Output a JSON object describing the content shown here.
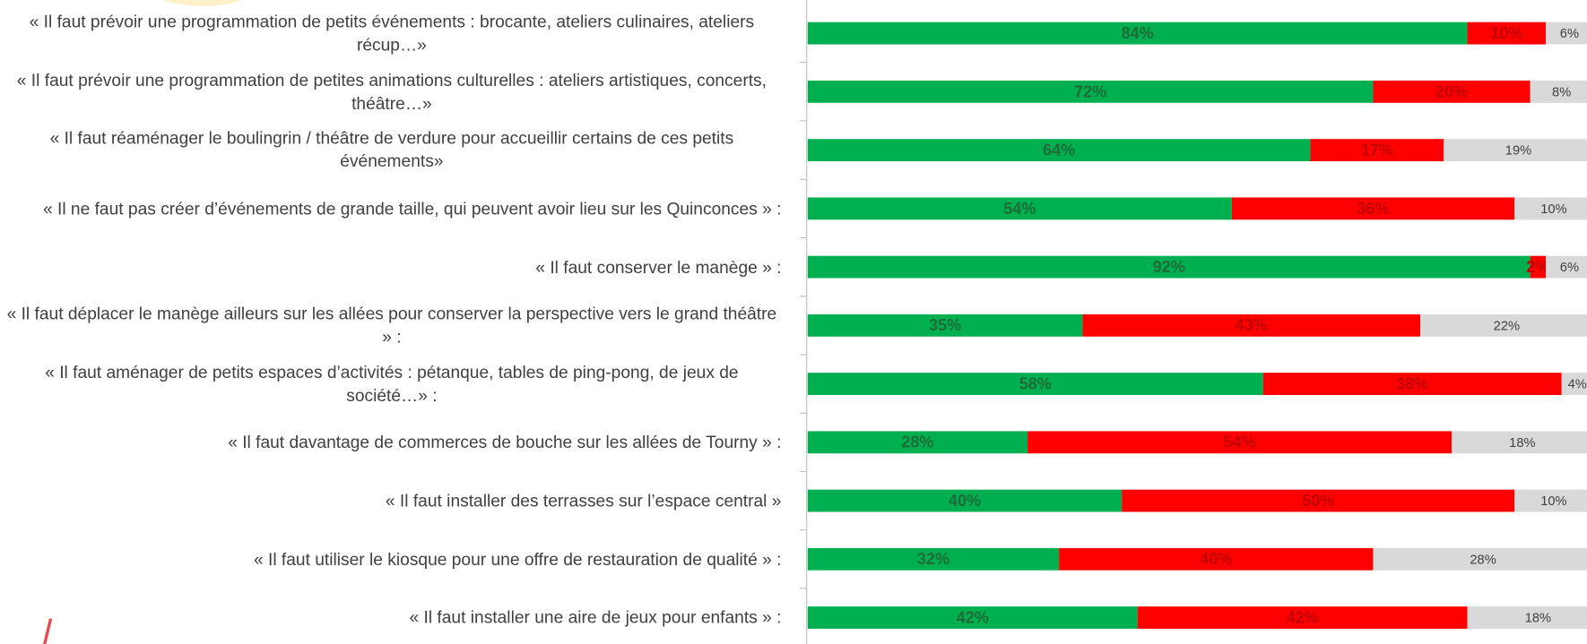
{
  "chart_data": {
    "type": "stacked_bar_horizontal",
    "categories": [
      "« Il faut prévoir une programmation de petits événements : brocante, ateliers culinaires, ateliers récup…»",
      "« Il faut prévoir une programmation de petites animations culturelles : ateliers artistiques, concerts, théâtre…»",
      "« Il faut réaménager le boulingrin / théâtre de verdure pour accueillir certains de ces petits événements»",
      "« Il ne faut pas créer d’événements de grande taille, qui peuvent avoir lieu sur les Quinconces » :",
      "« Il faut conserver le manège » :",
      "« Il faut déplacer le manège ailleurs sur les allées pour conserver la perspective vers le grand théâtre » :",
      "« Il faut aménager de petits espaces d’activités : pétanque, tables de ping-pong, de jeux de société…» :",
      "« Il faut davantage de commerces de bouche sur les allées de Tourny » :",
      "« Il faut installer des terrasses sur l’espace central »",
      "« Il faut utiliser le kiosque pour une offre de restauration de qualité » :",
      "« Il faut installer une aire de jeux pour enfants » :"
    ],
    "xlim": [
      0,
      100
    ],
    "series": [
      {
        "color": "#00b050",
        "label_color": "#1d6b37",
        "values": [
          84,
          72,
          64,
          54,
          92,
          35,
          58,
          28,
          40,
          32,
          42
        ],
        "value_labels": [
          "84%",
          "72%",
          "64%",
          "54%",
          "92%",
          "35%",
          "58%",
          "28%",
          "40%",
          "32%",
          "42%"
        ]
      },
      {
        "color": "#ff0000",
        "label_color": "#c00000",
        "values": [
          10,
          20,
          17,
          36,
          2,
          43,
          38,
          54,
          50,
          40,
          42
        ],
        "value_labels": [
          "10%",
          "20%",
          "17%",
          "36%",
          "2%",
          "43%",
          "38%",
          "54%",
          "50%",
          "40%",
          "42%"
        ]
      },
      {
        "color": "#d9d9d9",
        "label_color": "#404040",
        "values": [
          6,
          8,
          19,
          10,
          6,
          22,
          4,
          18,
          10,
          28,
          18
        ],
        "value_labels": [
          "6%",
          "8%",
          "19%",
          "10%",
          "6%",
          "22%",
          "4%",
          "18%",
          "10%",
          "28%",
          "18%"
        ]
      }
    ]
  }
}
